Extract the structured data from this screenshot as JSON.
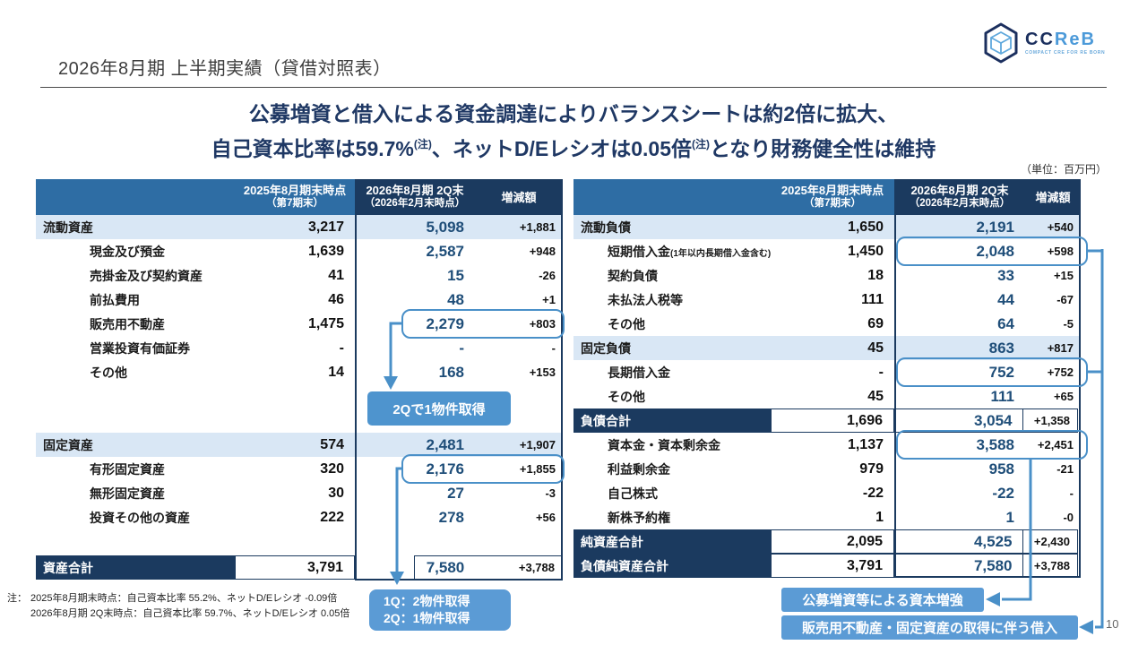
{
  "colors": {
    "navy": "#1B3A5F",
    "header_blue": "#2E6DA4",
    "section_bg": "#D9E7F5",
    "value_navy": "#1F4E79",
    "accent_blue": "#4E94CE",
    "callout_blue": "#5B9BD5",
    "box_border": "#4A90C8"
  },
  "logo": {
    "brand_cc": "CC",
    "brand_reb": "ReB",
    "tagline": "COMPACT CRE FOR RE BORN"
  },
  "header": {
    "title": "2026年8月期 上半期実績（貸借対照表）"
  },
  "headline": {
    "line1": "公募増資と借入による資金調達によりバランスシートは約2倍に拡大、",
    "line2_a": "自己資本比率は59.7%",
    "line2_sup1": "(注)",
    "line2_b": "、ネットD/Eレシオは0.05倍",
    "line2_sup2": "(注)",
    "line2_c": "となり財務健全性は維持"
  },
  "unit_label": "（単位：百万円）",
  "tables": {
    "col_headers": {
      "period_prev": "2025年8月期末時点",
      "period_prev_sub": "（第7期末）",
      "period_now": "2026年8月期 2Q末",
      "period_now_sub": "（2026年2月末時点）",
      "diff": "増減額"
    },
    "assets": {
      "rows": [
        {
          "label": "流動資産",
          "v2025": "3,217",
          "v2026": "5,098",
          "diff": "+1,881",
          "type": "section"
        },
        {
          "label": "現金及び預金",
          "v2025": "1,639",
          "v2026": "2,587",
          "diff": "+948",
          "type": "sub"
        },
        {
          "label": "売掛金及び契約資産",
          "v2025": "41",
          "v2026": "15",
          "diff": "-26",
          "type": "sub"
        },
        {
          "label": "前払費用",
          "v2025": "46",
          "v2026": "48",
          "diff": "+1",
          "type": "sub"
        },
        {
          "label": "販売用不動産",
          "v2025": "1,475",
          "v2026": "2,279",
          "diff": "+803",
          "type": "sub",
          "boxed": true
        },
        {
          "label": "営業投資有価証券",
          "v2025": "-",
          "v2026": "-",
          "diff": "-",
          "type": "sub"
        },
        {
          "label": "その他",
          "v2025": "14",
          "v2026": "168",
          "diff": "+153",
          "type": "sub"
        },
        {
          "label": "固定資産",
          "v2025": "574",
          "v2026": "2,481",
          "diff": "+1,907",
          "type": "section",
          "gap_before": 54
        },
        {
          "label": "有形固定資産",
          "v2025": "320",
          "v2026": "2,176",
          "diff": "+1,855",
          "type": "sub",
          "boxed": true
        },
        {
          "label": "無形固定資産",
          "v2025": "30",
          "v2026": "27",
          "diff": "-3",
          "type": "sub"
        },
        {
          "label": "投資その他の資産",
          "v2025": "222",
          "v2026": "278",
          "diff": "+56",
          "type": "sub"
        },
        {
          "label": "資産合計",
          "v2025": "3,791",
          "v2026": "7,580",
          "diff": "+3,788",
          "type": "total",
          "gap_before": 29
        }
      ]
    },
    "liabilities": {
      "rows": [
        {
          "label": "流動負債",
          "v2025": "1,650",
          "v2026": "2,191",
          "diff": "+540",
          "type": "section"
        },
        {
          "label": "短期借入金",
          "label_small": "(1年以内長期借入金含む)",
          "v2025": "1,450",
          "v2026": "2,048",
          "diff": "+598",
          "type": "sub",
          "boxed": true
        },
        {
          "label": "契約負債",
          "v2025": "18",
          "v2026": "33",
          "diff": "+15",
          "type": "sub"
        },
        {
          "label": "未払法人税等",
          "v2025": "111",
          "v2026": "44",
          "diff": "-67",
          "type": "sub"
        },
        {
          "label": "その他",
          "v2025": "69",
          "v2026": "64",
          "diff": "-5",
          "type": "sub"
        },
        {
          "label": "固定負債",
          "v2025": "45",
          "v2026": "863",
          "diff": "+817",
          "type": "section"
        },
        {
          "label": "長期借入金",
          "v2025": "-",
          "v2026": "752",
          "diff": "+752",
          "type": "sub",
          "boxed": true
        },
        {
          "label": "その他",
          "v2025": "45",
          "v2026": "111",
          "diff": "+65",
          "type": "sub"
        },
        {
          "label": "負債合計",
          "v2025": "1,696",
          "v2026": "3,054",
          "diff": "+1,358",
          "type": "total"
        },
        {
          "label": "資本金・資本剰余金",
          "v2025": "1,137",
          "v2026": "3,588",
          "diff": "+2,451",
          "type": "sub",
          "boxed": true
        },
        {
          "label": "利益剰余金",
          "v2025": "979",
          "v2026": "958",
          "diff": "-21",
          "type": "sub"
        },
        {
          "label": "自己株式",
          "v2025": "-22",
          "v2026": "-22",
          "diff": "-",
          "type": "sub"
        },
        {
          "label": "新株予約権",
          "v2025": "1",
          "v2026": "1",
          "diff": "-0",
          "type": "sub"
        },
        {
          "label": "純資産合計",
          "v2025": "2,095",
          "v2026": "4,525",
          "diff": "+2,430",
          "type": "total"
        },
        {
          "label": "負債純資産合計",
          "v2025": "3,791",
          "v2026": "7,580",
          "diff": "+3,788",
          "type": "total"
        }
      ]
    }
  },
  "callouts": {
    "q2_acquisition": "2Qで1物件取得",
    "q1q2_line1": "1Q：2物件取得",
    "q1q2_line2": "2Q：1物件取得",
    "capital_increase": "公募増資等による資本増強",
    "borrowing": "販売用不動産・固定資産の取得に伴う借入"
  },
  "notes": {
    "prefix": "注：",
    "line1": "2025年8月期末時点：自己資本比率 55.2%、ネットD/Eレシオ -0.09倍",
    "line2": "2026年8月期 2Q末時点：自己資本比率 59.7%、ネットD/Eレシオ 0.05倍"
  },
  "page_number": "10"
}
